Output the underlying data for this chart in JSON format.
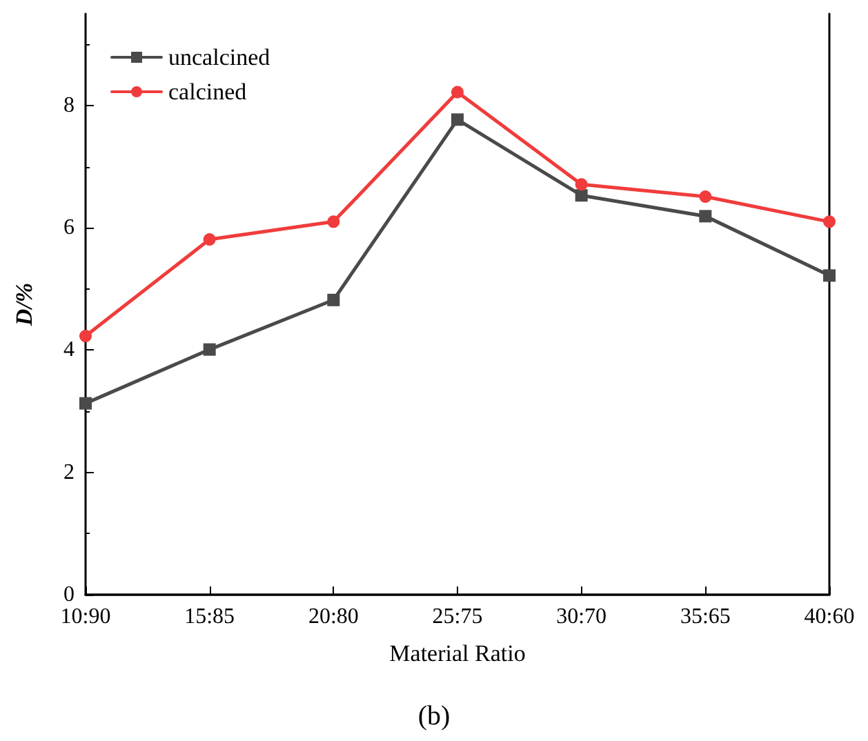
{
  "chart_data": {
    "type": "line",
    "xlabel": "Material Ratio",
    "ylabel": "D/%",
    "categories": [
      "10:90",
      "15:85",
      "20:80",
      "25:75",
      "30:70",
      "35:65",
      "40:60"
    ],
    "series": [
      {
        "name": "uncalcined",
        "color": "#4a4a4a",
        "marker": "square",
        "values": [
          3.13,
          4.01,
          4.82,
          7.77,
          6.53,
          6.19,
          5.22
        ]
      },
      {
        "name": "calcined",
        "color": "#f03c3c",
        "marker": "circle",
        "values": [
          4.23,
          5.81,
          6.1,
          8.22,
          6.71,
          6.51,
          6.1
        ]
      }
    ],
    "ylim": [
      0,
      9.5
    ],
    "yticks": [
      0,
      2,
      4,
      6,
      8
    ],
    "grid": false,
    "legend": "top left",
    "line_style": "solid",
    "annotations": [
      "(b)"
    ]
  }
}
